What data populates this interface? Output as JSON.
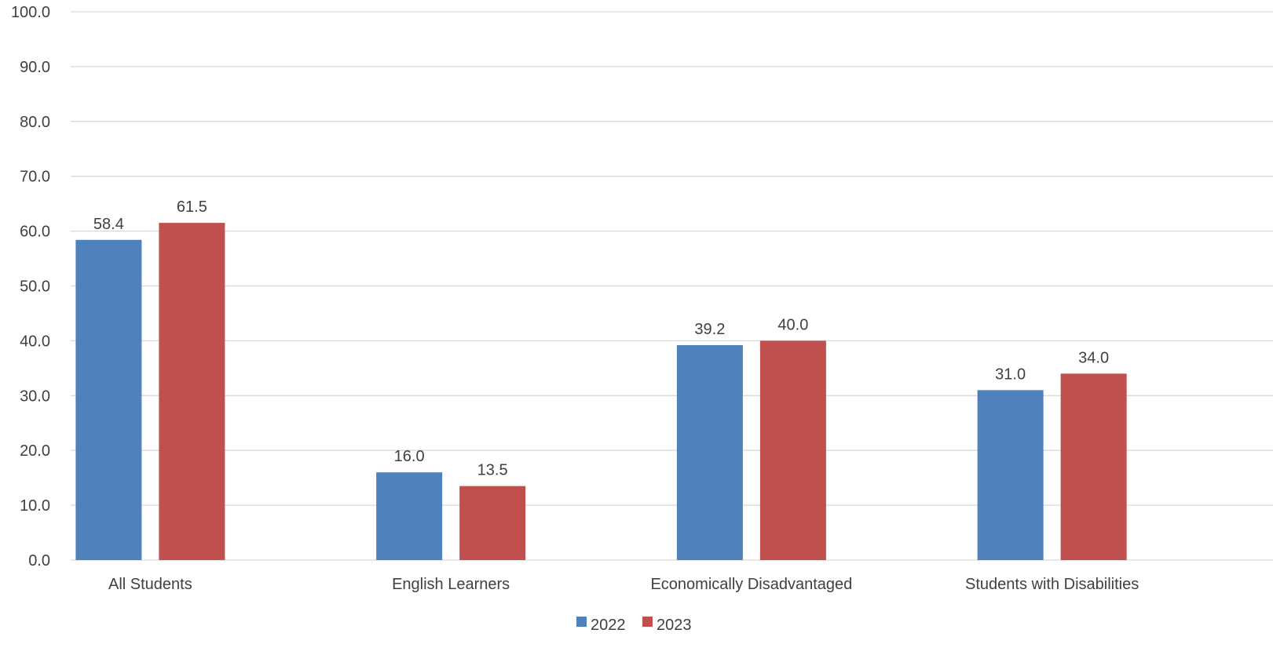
{
  "chart_data": {
    "type": "bar",
    "categories": [
      "All Students",
      "English Learners",
      "Economically Disadvantaged",
      "Students with Disabilities"
    ],
    "series": [
      {
        "name": "2022",
        "values": [
          58.4,
          16.0,
          39.2,
          31.0
        ],
        "color": "#4f81bd"
      },
      {
        "name": "2023",
        "values": [
          61.5,
          13.5,
          40.0,
          34.0
        ],
        "color": "#c0504d"
      }
    ],
    "ylim": [
      0,
      100
    ],
    "yticks": [
      0,
      10,
      20,
      30,
      40,
      50,
      60,
      70,
      80,
      90,
      100
    ],
    "tick_decimals": 1,
    "grid": true,
    "legend_position": "bottom-center",
    "title": "",
    "xlabel": "",
    "ylabel": ""
  }
}
